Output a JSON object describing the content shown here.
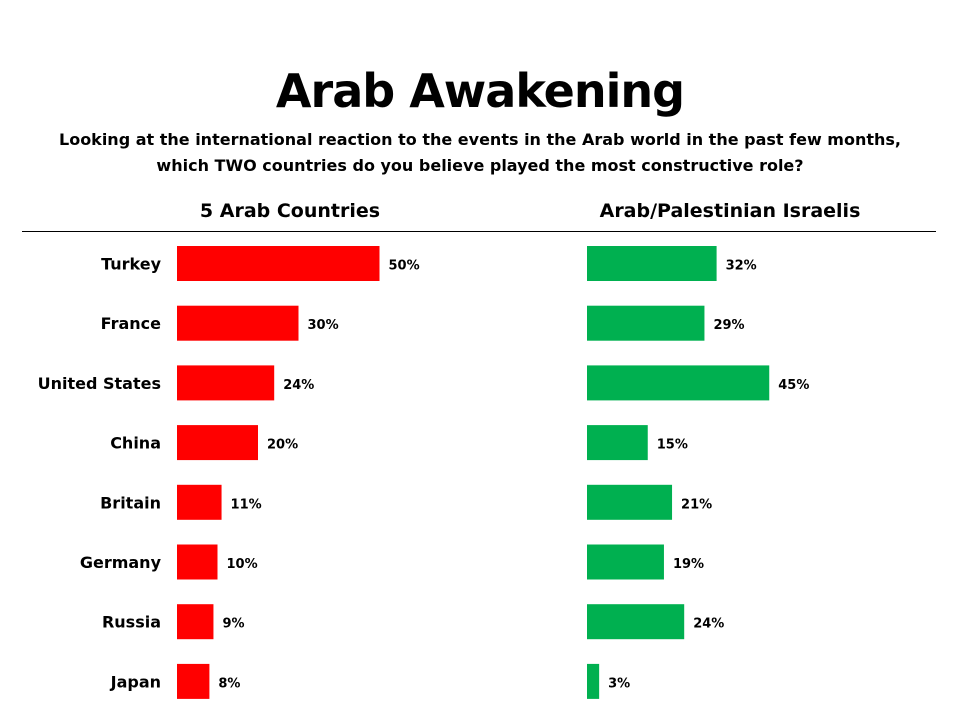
{
  "title": "Arab Awakening",
  "subtitle": "Looking at the international reaction to the events in the Arab world in the past few months, which TWO countries do you believe played the most constructive role?",
  "chart_data": [
    {
      "type": "bar",
      "orientation": "horizontal",
      "title": "5 Arab Countries",
      "categories": [
        "Turkey",
        "France",
        "United States",
        "China",
        "Britain",
        "Germany",
        "Russia",
        "Japan"
      ],
      "values": [
        50,
        30,
        24,
        20,
        11,
        10,
        9,
        8
      ],
      "data_labels": [
        "50%",
        "30%",
        "24%",
        "20%",
        "11%",
        "10%",
        "9%",
        "8%"
      ],
      "color": "#ff0000",
      "unit": "%"
    },
    {
      "type": "bar",
      "orientation": "horizontal",
      "title": "Arab/Palestinian Israelis",
      "categories": [
        "Turkey",
        "France",
        "United States",
        "China",
        "Britain",
        "Germany",
        "Russia",
        "Japan"
      ],
      "values": [
        32,
        29,
        45,
        15,
        21,
        19,
        24,
        3
      ],
      "data_labels": [
        "32%",
        "29%",
        "45%",
        "15%",
        "21%",
        "19%",
        "24%",
        "3%"
      ],
      "color": "#00b050",
      "unit": "%"
    }
  ]
}
